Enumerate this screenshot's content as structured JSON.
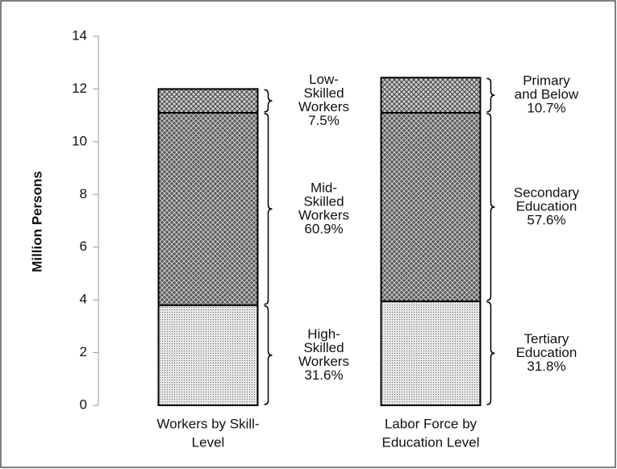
{
  "chart_data": {
    "type": "stacked_bar",
    "y_label": "Million Persons",
    "categories": [
      [
        "Workers by Skill-",
        "Level"
      ],
      [
        "Labor Force by",
        "Education Level"
      ]
    ],
    "series": [
      {
        "color": "#555555",
        "pattern": "dots",
        "values": [
          3.8,
          3.95
        ],
        "labels": [
          [
            "High-",
            "Skilled",
            "Workers",
            "31.6%"
          ],
          [
            "Tertiary",
            "Education",
            "31.8%"
          ]
        ]
      },
      {
        "color": "#333333",
        "pattern": "dense-crosshatch",
        "values": [
          7.3,
          7.15
        ],
        "labels": [
          [
            "Mid-",
            "Skilled",
            "Workers",
            "60.9%"
          ],
          [
            "Secondary",
            "Education",
            "57.6%"
          ]
        ]
      },
      {
        "color": "#444444",
        "pattern": "crosshatch",
        "values": [
          0.9,
          1.33
        ],
        "labels": [
          [
            "Low-",
            "Skilled",
            "Workers",
            "7.5%"
          ],
          [
            "Primary",
            "and Below",
            "10.7%"
          ]
        ]
      }
    ],
    "ylim": [
      0,
      14
    ],
    "yticks": [
      0,
      2,
      4,
      6,
      8,
      10,
      12,
      14
    ]
  }
}
